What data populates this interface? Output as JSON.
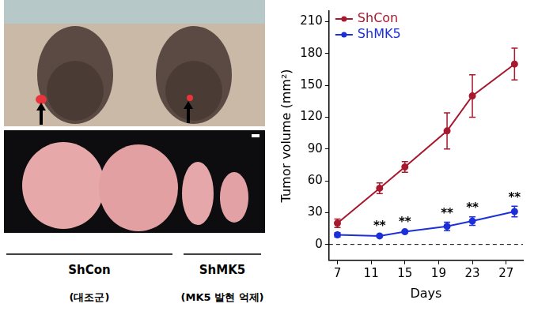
{
  "chart_data": {
    "type": "line",
    "x_label": "Days",
    "y_label": "Tumor volume (mm²)",
    "x": [
      7,
      12,
      15,
      20,
      23,
      28
    ],
    "series": [
      {
        "name": "ShCon",
        "color": "#a6192e",
        "values": [
          20,
          53,
          73,
          107,
          140,
          170
        ],
        "errors": [
          4,
          5,
          5,
          17,
          20,
          15
        ],
        "marker": "circle",
        "line_style": "solid"
      },
      {
        "name": "ShMK5",
        "color": "#1c2fd9",
        "values": [
          9,
          8,
          12,
          17,
          22,
          31
        ],
        "errors": [
          2,
          1,
          1,
          4,
          4,
          5
        ],
        "significance": [
          null,
          "**",
          "**",
          "**",
          "**",
          "**"
        ],
        "marker": "circle",
        "line_style": "solid"
      }
    ],
    "xlim": [
      6,
      29
    ],
    "xticks": [
      7,
      11,
      15,
      19,
      23,
      27
    ],
    "ylim": [
      -15,
      220
    ],
    "yticks": [
      0,
      30,
      60,
      90,
      120,
      150,
      180,
      210
    ],
    "grid": false,
    "legend": "upper left",
    "hline": 0
  },
  "figure": {
    "groups": [
      {
        "label": "ShCon",
        "caption": "(대조군)"
      },
      {
        "label": "ShMK5",
        "caption": "(MK5 발현 억제)"
      }
    ]
  }
}
